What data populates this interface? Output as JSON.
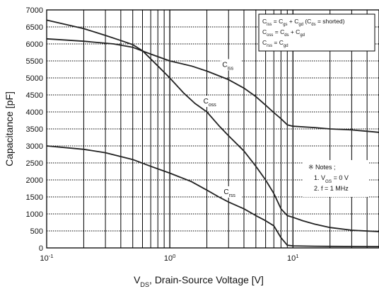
{
  "chart_data": {
    "type": "line",
    "xscale": "log",
    "xlim": [
      0.1,
      50
    ],
    "ylim": [
      0,
      7000
    ],
    "grid": true,
    "xlabel": {
      "main": "V",
      "sub": "DS",
      "rest": ", Drain-Source Voltage [V]"
    },
    "ylabel": "Capacitance [pF]",
    "xticks": [
      {
        "value": 0.1,
        "base": "10",
        "exp": "-1"
      },
      {
        "value": 1,
        "base": "10",
        "exp": "0"
      },
      {
        "value": 10,
        "base": "10",
        "exp": "1"
      }
    ],
    "yticks": [
      0,
      500,
      1000,
      1500,
      2000,
      2500,
      3000,
      3500,
      4000,
      4500,
      5000,
      5500,
      6000,
      6500,
      7000
    ],
    "series": [
      {
        "main": "C",
        "sub": "iss",
        "x": [
          0.1,
          0.2,
          0.35,
          0.5,
          0.7,
          1.0,
          1.5,
          2.0,
          3.0,
          4.0,
          5.0,
          6.0,
          7.0,
          8.0,
          9.0,
          10,
          15,
          20,
          30,
          50
        ],
        "y": [
          6150,
          6080,
          6000,
          5900,
          5700,
          5500,
          5350,
          5200,
          4950,
          4700,
          4450,
          4200,
          3980,
          3800,
          3620,
          3580,
          3540,
          3500,
          3470,
          3400
        ]
      },
      {
        "main": "C",
        "sub": "oss",
        "x": [
          0.1,
          0.2,
          0.3,
          0.4,
          0.5,
          0.6,
          0.8,
          1.0,
          1.3,
          1.6,
          2.0,
          2.5,
          3.0,
          4.0,
          5.0,
          6.0,
          7.0,
          8.0,
          9.0,
          10,
          12,
          15,
          20,
          30,
          50
        ],
        "y": [
          6700,
          6450,
          6250,
          6100,
          5980,
          5800,
          5350,
          5000,
          4550,
          4250,
          4000,
          3600,
          3300,
          2850,
          2400,
          2000,
          1600,
          1150,
          950,
          900,
          800,
          700,
          600,
          520,
          480
        ]
      },
      {
        "main": "C",
        "sub": "rss",
        "x": [
          0.1,
          0.2,
          0.3,
          0.5,
          0.7,
          1.0,
          1.5,
          2.0,
          2.5,
          3.0,
          4.0,
          5.0,
          6.0,
          7.0,
          8.0,
          9.0,
          10,
          15,
          20,
          50
        ],
        "y": [
          3000,
          2900,
          2800,
          2600,
          2400,
          2200,
          1950,
          1700,
          1500,
          1350,
          1150,
          950,
          800,
          650,
          300,
          80,
          60,
          50,
          45,
          40
        ]
      }
    ],
    "legend": {
      "lines": [
        {
          "parts": [
            [
              "C",
              ""
            ],
            [
              "iss",
              "sub"
            ],
            [
              " = C",
              ""
            ],
            [
              "gs",
              "sub"
            ],
            [
              " + C",
              ""
            ],
            [
              "gd",
              "sub"
            ],
            [
              " (C",
              ""
            ],
            [
              "ds",
              "sub"
            ],
            [
              " = shorted)",
              ""
            ]
          ]
        },
        {
          "parts": [
            [
              "C",
              ""
            ],
            [
              "oss",
              "sub"
            ],
            [
              " = C",
              ""
            ],
            [
              "ds",
              "sub"
            ],
            [
              " + C",
              ""
            ],
            [
              "gd",
              "sub"
            ]
          ]
        },
        {
          "parts": [
            [
              "C",
              ""
            ],
            [
              "rss",
              "sub"
            ],
            [
              " = C",
              ""
            ],
            [
              "gd",
              "sub"
            ]
          ]
        }
      ],
      "placement": "top-right"
    },
    "notes": {
      "bullet": "※",
      "title": "Notes ;",
      "items": [
        {
          "parts": [
            [
              "1. V",
              ""
            ],
            [
              "GS",
              "sub"
            ],
            [
              " = 0 V",
              ""
            ]
          ]
        },
        {
          "parts": [
            [
              "2. f = 1 MHz",
              ""
            ]
          ]
        }
      ],
      "placement": "right-middle"
    }
  }
}
